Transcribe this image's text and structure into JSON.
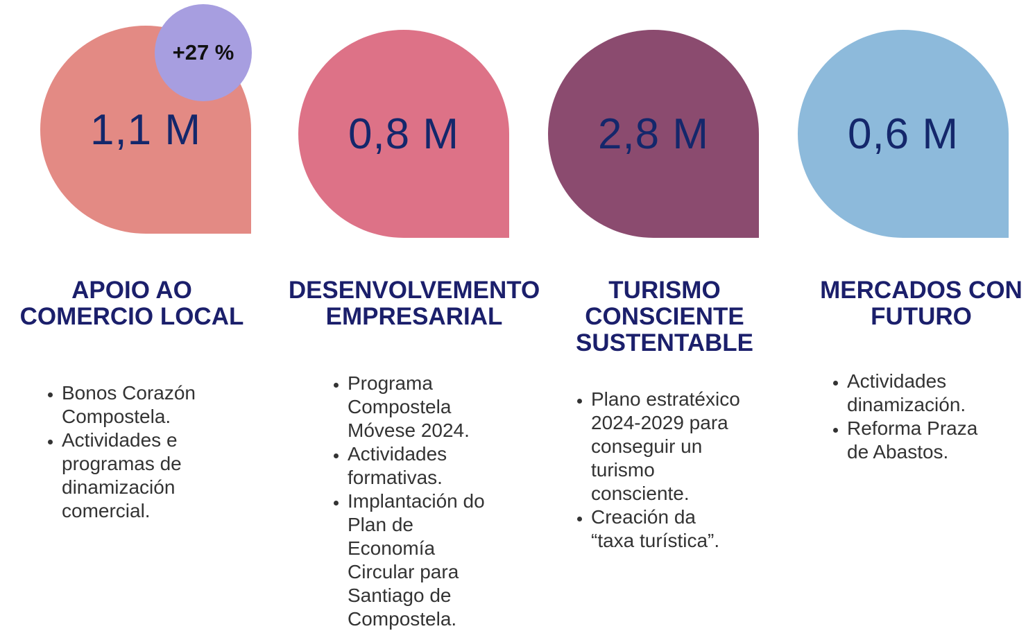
{
  "badge": "+27 %",
  "items": [
    {
      "value": "1,1 M",
      "title": [
        "APOIO AO",
        "COMERCIO LOCAL"
      ],
      "bullets": [
        [
          "Bonos Corazón",
          "Compostela."
        ],
        [
          "Actividades e",
          "programas de",
          "dinamización",
          "comercial."
        ]
      ]
    },
    {
      "value": "0,8 M",
      "title": [
        "DESENVOLVEMENTO",
        "EMPRESARIAL"
      ],
      "bullets": [
        [
          "Programa",
          "Compostela",
          "Móvese 2024."
        ],
        [
          "Actividades",
          "formativas."
        ],
        [
          "Implantación do",
          "Plan de",
          "Economía",
          "Circular para",
          "Santiago de",
          "Compostela."
        ]
      ]
    },
    {
      "value": "2,8 M",
      "title": [
        "TURISMO",
        "CONSCIENTE",
        "SUSTENTABLE"
      ],
      "bullets": [
        [
          "Plano estratéxico",
          "2024-2029 para",
          "conseguir un",
          "turismo",
          "consciente."
        ],
        [
          "Creación da",
          "“taxa turística”."
        ]
      ]
    },
    {
      "value": "0,6 M",
      "title": [
        "MERCADOS CON",
        "FUTURO"
      ],
      "bullets": [
        [
          "Actividades",
          "dinamización."
        ],
        [
          "Reforma Praza",
          "de Abastos."
        ]
      ]
    }
  ]
}
